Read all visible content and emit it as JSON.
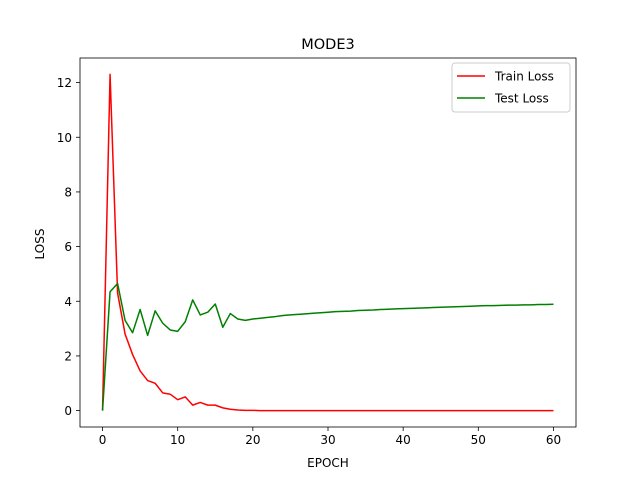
{
  "chart_data": {
    "type": "line",
    "title": "MODE3",
    "xlabel": "EPOCH",
    "ylabel": "LOSS",
    "xlim": [
      -3,
      63
    ],
    "ylim": [
      -0.6,
      12.9
    ],
    "xticks": [
      0,
      10,
      20,
      30,
      40,
      50,
      60
    ],
    "yticks": [
      0,
      2,
      4,
      6,
      8,
      10,
      12
    ],
    "grid": false,
    "legend_position": "top-right",
    "series": [
      {
        "name": "Train Loss",
        "color": "#ff0000",
        "x": [
          0,
          1,
          2,
          3,
          4,
          5,
          6,
          7,
          8,
          9,
          10,
          11,
          12,
          13,
          14,
          15,
          16,
          17,
          18,
          19,
          20,
          21,
          22,
          23,
          24,
          25,
          26,
          27,
          28,
          29,
          30,
          31,
          32,
          33,
          34,
          35,
          36,
          37,
          38,
          39,
          40,
          41,
          42,
          43,
          44,
          45,
          46,
          47,
          48,
          49,
          50,
          51,
          52,
          53,
          54,
          55,
          56,
          57,
          58,
          59,
          60
        ],
        "y": [
          0.0,
          12.3,
          4.3,
          2.8,
          2.05,
          1.45,
          1.1,
          1.0,
          0.65,
          0.6,
          0.4,
          0.5,
          0.2,
          0.3,
          0.2,
          0.2,
          0.1,
          0.05,
          0.02,
          0.01,
          0.01,
          0.0,
          0.0,
          0.0,
          0.0,
          0.0,
          0.0,
          0.0,
          0.0,
          0.0,
          0.0,
          0.0,
          0.0,
          0.0,
          0.0,
          0.0,
          0.0,
          0.0,
          0.0,
          0.0,
          0.0,
          0.0,
          0.0,
          0.0,
          0.0,
          0.0,
          0.0,
          0.0,
          0.0,
          0.0,
          0.0,
          0.0,
          0.0,
          0.0,
          0.0,
          0.0,
          0.0,
          0.0,
          0.0,
          0.0,
          0.0
        ]
      },
      {
        "name": "Test Loss",
        "color": "#008000",
        "x": [
          0,
          1,
          2,
          3,
          4,
          5,
          6,
          7,
          8,
          9,
          10,
          11,
          12,
          13,
          14,
          15,
          16,
          17,
          18,
          19,
          20,
          21,
          22,
          23,
          24,
          25,
          26,
          27,
          28,
          29,
          30,
          31,
          32,
          33,
          34,
          35,
          36,
          37,
          38,
          39,
          40,
          41,
          42,
          43,
          44,
          45,
          46,
          47,
          48,
          49,
          50,
          51,
          52,
          53,
          54,
          55,
          56,
          57,
          58,
          59,
          60
        ],
        "y": [
          0.0,
          4.35,
          4.65,
          3.3,
          2.85,
          3.7,
          2.75,
          3.65,
          3.2,
          2.95,
          2.9,
          3.25,
          4.05,
          3.5,
          3.6,
          3.9,
          3.05,
          3.55,
          3.35,
          3.3,
          3.35,
          3.38,
          3.41,
          3.44,
          3.48,
          3.5,
          3.52,
          3.54,
          3.56,
          3.58,
          3.6,
          3.62,
          3.63,
          3.64,
          3.66,
          3.67,
          3.68,
          3.7,
          3.71,
          3.72,
          3.73,
          3.74,
          3.75,
          3.76,
          3.77,
          3.78,
          3.79,
          3.8,
          3.81,
          3.82,
          3.83,
          3.84,
          3.84,
          3.85,
          3.86,
          3.86,
          3.87,
          3.87,
          3.88,
          3.88,
          3.89
        ]
      }
    ]
  }
}
